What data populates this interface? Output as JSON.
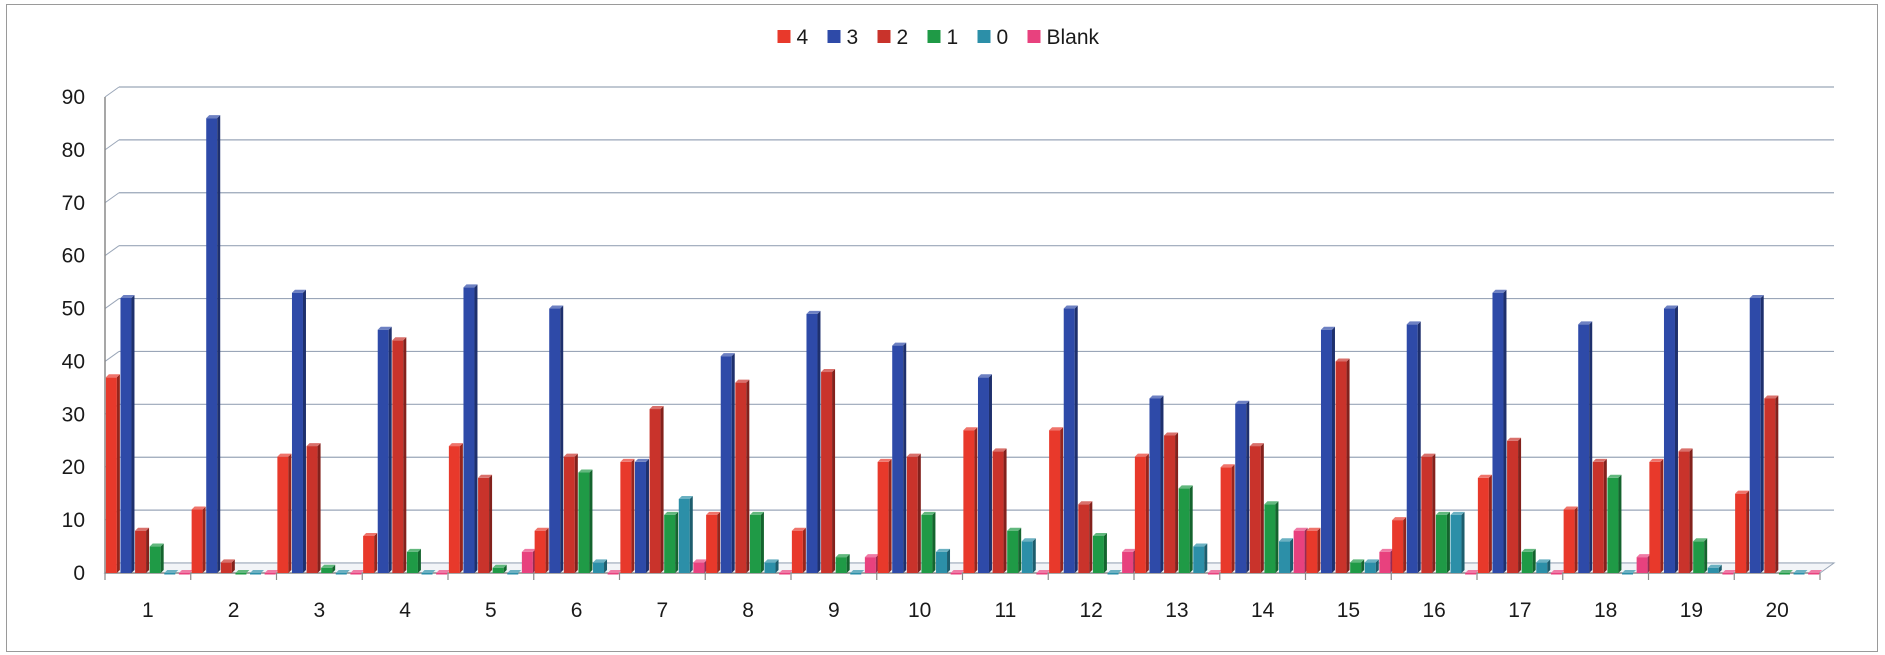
{
  "chart_data": {
    "type": "bar",
    "categories": [
      "1",
      "2",
      "3",
      "4",
      "5",
      "6",
      "7",
      "8",
      "9",
      "10",
      "11",
      "12",
      "13",
      "14",
      "15",
      "16",
      "17",
      "18",
      "19",
      "20"
    ],
    "series": [
      {
        "name": "4",
        "color": "#e8392b",
        "values": [
          37,
          12,
          22,
          7,
          24,
          8,
          21,
          11,
          8,
          21,
          27,
          27,
          22,
          20,
          8,
          10,
          18,
          12,
          21,
          15
        ]
      },
      {
        "name": "3",
        "color": "#2e4aa8",
        "values": [
          52,
          86,
          53,
          46,
          54,
          50,
          21,
          41,
          49,
          43,
          37,
          50,
          33,
          32,
          46,
          47,
          53,
          47,
          50,
          52
        ]
      },
      {
        "name": "2",
        "color": "#c9332b",
        "values": [
          8,
          2,
          24,
          44,
          18,
          22,
          31,
          36,
          38,
          22,
          23,
          13,
          26,
          24,
          40,
          22,
          25,
          21,
          23,
          33
        ]
      },
      {
        "name": "1",
        "color": "#1f9a46",
        "values": [
          5,
          0,
          1,
          4,
          1,
          19,
          11,
          11,
          3,
          11,
          8,
          7,
          16,
          13,
          2,
          11,
          4,
          18,
          6,
          0
        ]
      },
      {
        "name": "0",
        "color": "#2c8fa8",
        "values": [
          0,
          0,
          0,
          0,
          0,
          2,
          14,
          2,
          0,
          4,
          6,
          0,
          5,
          6,
          2,
          11,
          2,
          0,
          1,
          0
        ]
      },
      {
        "name": "Blank",
        "color": "#e8417e",
        "values": [
          0,
          0,
          0,
          0,
          4,
          0,
          2,
          0,
          3,
          0,
          0,
          4,
          0,
          8,
          4,
          0,
          0,
          3,
          0,
          0
        ]
      }
    ],
    "ylim": [
      0,
      90
    ],
    "yticks": [
      "0",
      "10",
      "20",
      "30",
      "40",
      "50",
      "60",
      "70",
      "80",
      "90"
    ],
    "grid": true,
    "legend_position": "top-center"
  }
}
